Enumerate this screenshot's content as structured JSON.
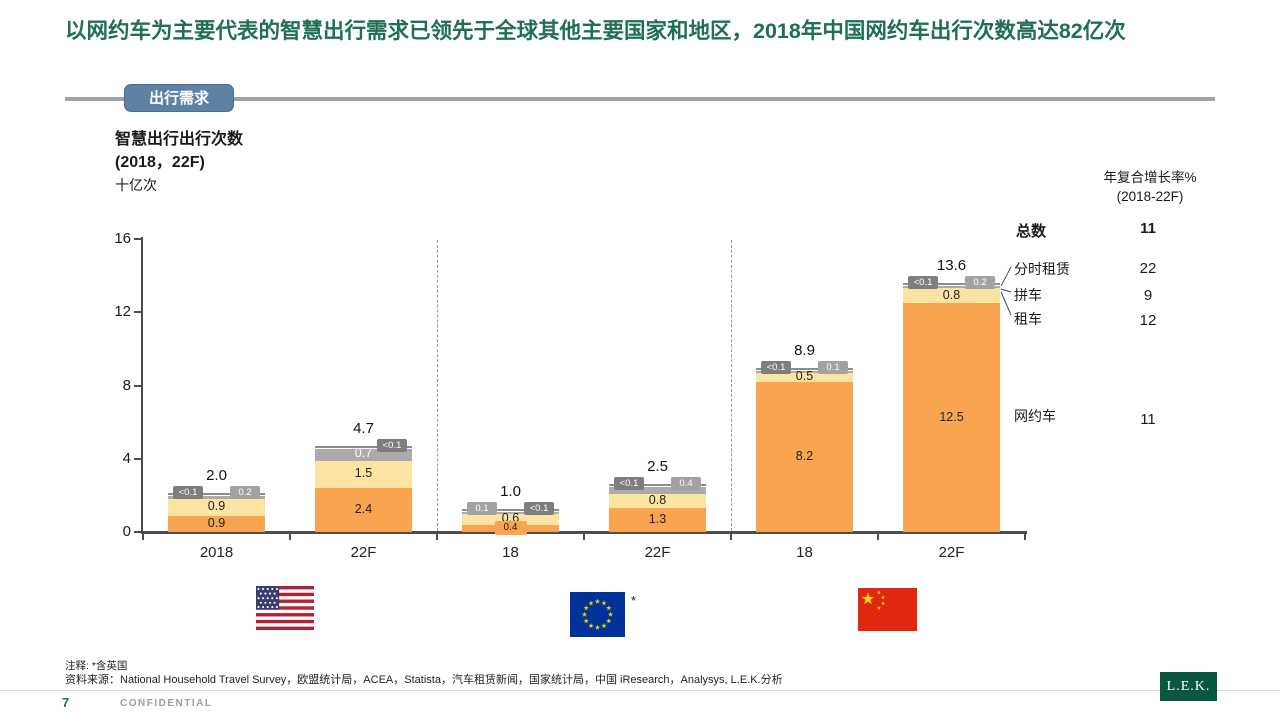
{
  "header": {
    "title": "以网约车为主要代表的智慧出行需求已领先于全球其他主要国家和地区，2018年中国网约车出行次数高达82亿次",
    "tab": "出行需求"
  },
  "chart": {
    "heading_line1": "智慧出行出行次数",
    "heading_line2": "(2018，22F)",
    "unit": "十亿次"
  },
  "cagr_panel": {
    "header_line1": "年复合增长率%",
    "header_line2": "(2018-22F)",
    "total_label": "总数",
    "total_value": "11",
    "rows": [
      {
        "label": "分时租赁",
        "value": "22"
      },
      {
        "label": "拼车",
        "value": "9"
      },
      {
        "label": "租车",
        "value": "12"
      }
    ],
    "ridehail_label": "网约车",
    "ridehail_value": "11"
  },
  "chart_data": {
    "type": "bar",
    "variant": "stacked",
    "title": "智慧出行出行次数 (2018，22F)",
    "ylabel": "十亿次",
    "ylim": [
      0,
      16
    ],
    "yticks": [
      0,
      4,
      8,
      12,
      16
    ],
    "grid": false,
    "categories": [
      "2018",
      "22F",
      "18",
      "22F",
      "18",
      "22F"
    ],
    "group_separators_after": [
      2,
      4
    ],
    "series_bottom_to_top": [
      "网约车",
      "租车",
      "拼车",
      "分时租赁"
    ],
    "colors": {
      "网约车": "#F9A44E",
      "租车": "#FBE3A1",
      "拼车": "#ABABAB",
      "分时租赁": "#8C8C8C",
      "badge_gray": "#A2A2A2",
      "badge_dark": "#7E7E7E"
    },
    "bars": [
      {
        "category": "2018",
        "total": 2.0,
        "total_label": "2.0",
        "segments": [
          {
            "name": "网约车",
            "value": 0.9,
            "label": "0.9",
            "style": "inside"
          },
          {
            "name": "租车",
            "value": 0.9,
            "label": "0.9",
            "style": "inside"
          },
          {
            "name": "拼车",
            "value": 0.2,
            "label": "0.2",
            "style": "badge",
            "side": "right"
          },
          {
            "name": "分时租赁",
            "value": 0.05,
            "label": "<0.1",
            "style": "badge",
            "side": "left"
          }
        ]
      },
      {
        "category": "22F",
        "total": 4.7,
        "total_label": "4.7",
        "segments": [
          {
            "name": "网约车",
            "value": 2.4,
            "label": "2.4",
            "style": "inside"
          },
          {
            "name": "租车",
            "value": 1.5,
            "label": "1.5",
            "style": "inside"
          },
          {
            "name": "拼车",
            "value": 0.7,
            "label": "0.7",
            "style": "inside-white"
          },
          {
            "name": "分时租赁",
            "value": 0.05,
            "label": "<0.1",
            "style": "badge",
            "side": "right"
          }
        ]
      },
      {
        "category": "18",
        "total": 1.0,
        "total_label": "1.0",
        "segments": [
          {
            "name": "网约车",
            "value": 0.4,
            "label": "0.4",
            "style": "chip-orange"
          },
          {
            "name": "租车",
            "value": 0.6,
            "label": "0.6",
            "style": "inside"
          },
          {
            "name": "拼车",
            "value": 0.1,
            "label": "0.1",
            "style": "badge",
            "side": "left"
          },
          {
            "name": "分时租赁",
            "value": 0.05,
            "label": "<0.1",
            "style": "badge",
            "side": "right"
          }
        ]
      },
      {
        "category": "22F",
        "total": 2.5,
        "total_label": "2.5",
        "segments": [
          {
            "name": "网约车",
            "value": 1.3,
            "label": "1.3",
            "style": "inside"
          },
          {
            "name": "租车",
            "value": 0.8,
            "label": "0.8",
            "style": "inside"
          },
          {
            "name": "拼车",
            "value": 0.4,
            "label": "0.4",
            "style": "badge",
            "side": "right"
          },
          {
            "name": "分时租赁",
            "value": 0.05,
            "label": "<0.1",
            "style": "badge",
            "side": "left"
          }
        ]
      },
      {
        "category": "18",
        "total": 8.9,
        "total_label": "8.9",
        "segments": [
          {
            "name": "网约车",
            "value": 8.2,
            "label": "8.2",
            "style": "inside"
          },
          {
            "name": "租车",
            "value": 0.5,
            "label": "0.5",
            "style": "inside"
          },
          {
            "name": "拼车",
            "value": 0.1,
            "label": "0.1",
            "style": "badge",
            "side": "right"
          },
          {
            "name": "分时租赁",
            "value": 0.05,
            "label": "<0.1",
            "style": "badge",
            "side": "left"
          }
        ]
      },
      {
        "category": "22F",
        "total": 13.6,
        "total_label": "13.6",
        "segments": [
          {
            "name": "网约车",
            "value": 12.5,
            "label": "12.5",
            "style": "inside"
          },
          {
            "name": "租车",
            "value": 0.8,
            "label": "0.8",
            "style": "inside"
          },
          {
            "name": "拼车",
            "value": 0.2,
            "label": "0.2",
            "style": "badge",
            "side": "right"
          },
          {
            "name": "分时租赁",
            "value": 0.05,
            "label": "<0.1",
            "style": "badge",
            "side": "left"
          }
        ]
      }
    ]
  },
  "flags": {
    "eu_asterisk": "*"
  },
  "footnotes": {
    "note": "注释: *含英国",
    "source": "资料来源：National Household Travel Survey，欧盟统计局，ACEA，Statista，汽车租赁新闻，国家统计局，中国 iResearch，Analysys, L.E.K.分析"
  },
  "footer": {
    "page": "7",
    "confidential": "CONFIDENTIAL",
    "logo": "L.E.K."
  }
}
